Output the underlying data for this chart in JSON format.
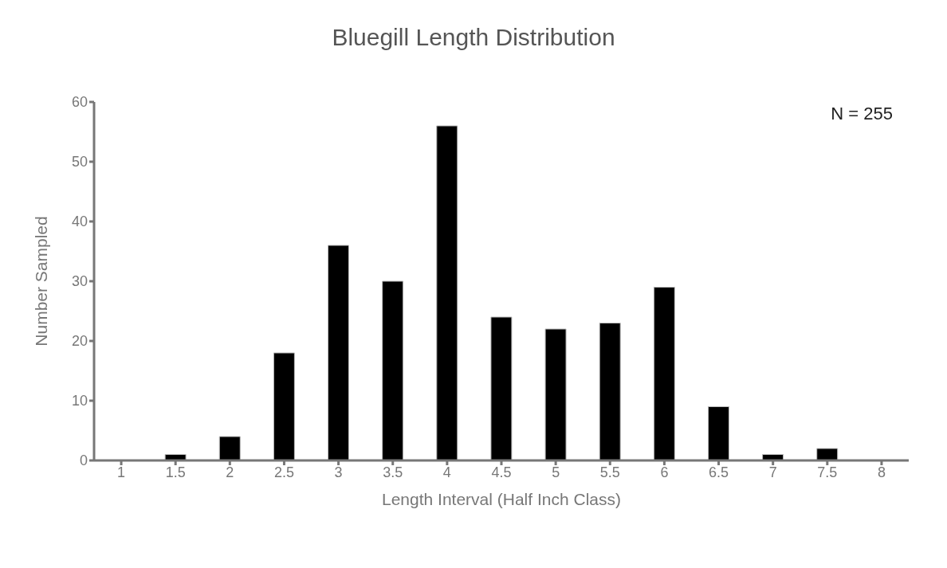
{
  "chart_data": {
    "type": "bar",
    "title": "Bluegill  Length  Distribution",
    "xlabel": "Length  Interval  (Half Inch Class)",
    "ylabel": "Number Sampled",
    "categories": [
      "1",
      "1.5",
      "2",
      "2.5",
      "3",
      "3.5",
      "4",
      "4.5",
      "5",
      "5.5",
      "6",
      "6.5",
      "7",
      "7.5",
      "8"
    ],
    "values": [
      0,
      1,
      4,
      18,
      36,
      30,
      56,
      24,
      22,
      23,
      29,
      9,
      1,
      2,
      0
    ],
    "color": "#000000",
    "ylim": [
      0,
      60
    ],
    "yticks": [
      0,
      10,
      20,
      30,
      40,
      50,
      60
    ],
    "grid": false,
    "legend": false,
    "annotations": [
      "N = 255"
    ]
  }
}
